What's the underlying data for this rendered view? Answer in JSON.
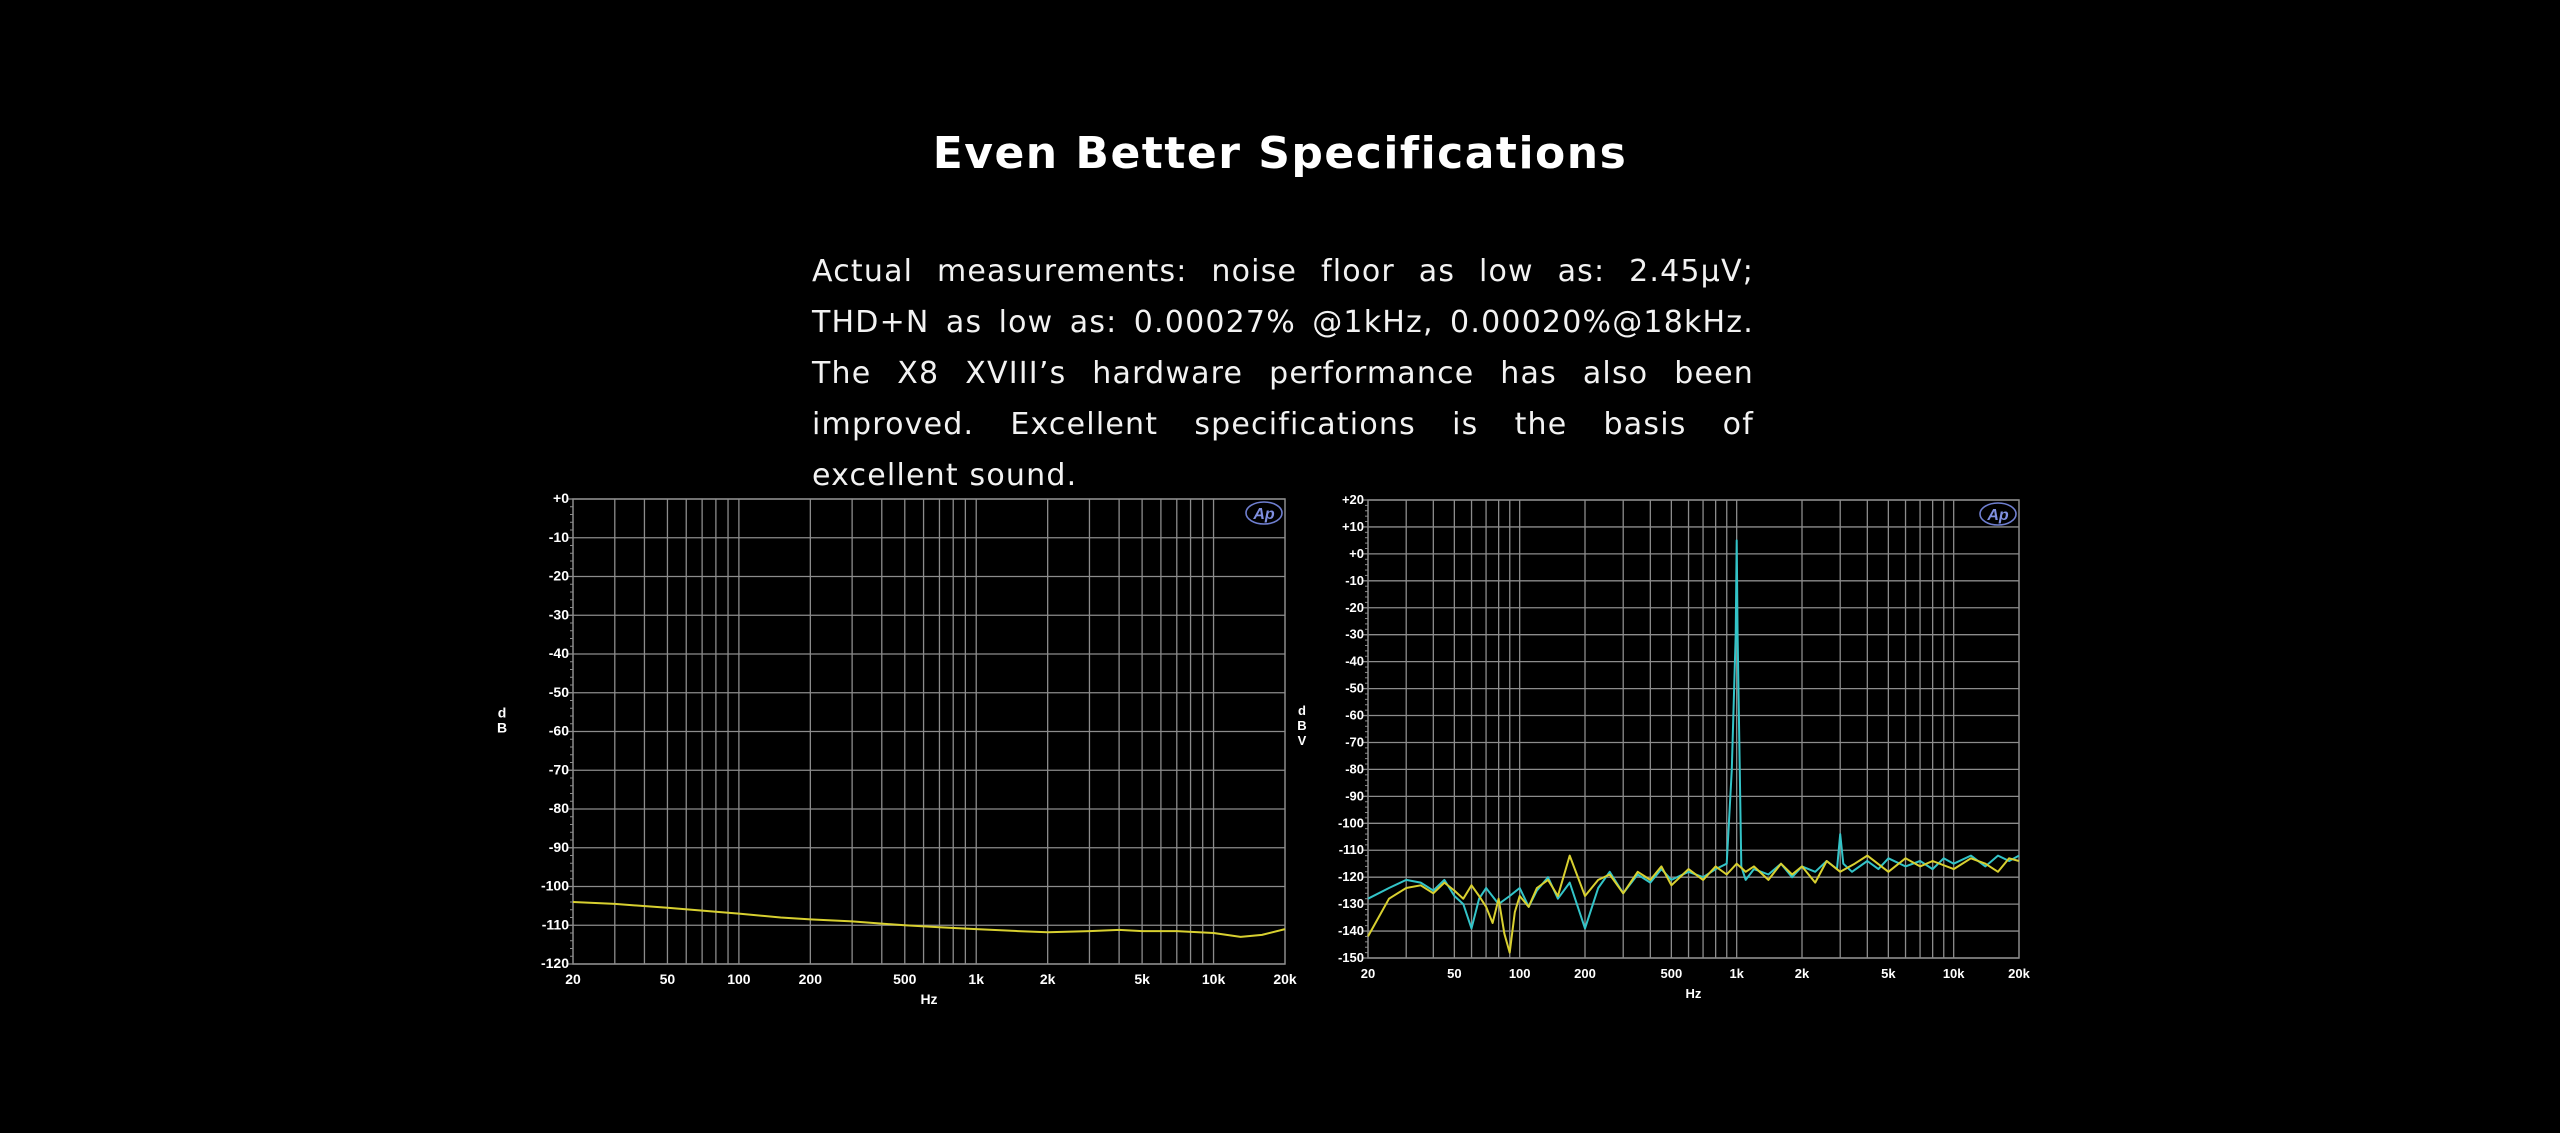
{
  "heading": "Even Better Specifications",
  "description": "Actual measurements: noise floor as low as: 2.45µV; THD+N as low as: 0.00027% @1kHz, 0.00020%@18kHz. The X8 XVIII’s hardware performance has also been improved. Excellent specifications is the basis of excellent sound.",
  "colors": {
    "background": "#000000",
    "grid": "#8c8c8c",
    "trace_yellow": "#d8d030",
    "trace_cyan": "#33c4c8"
  },
  "chart_data": [
    {
      "type": "line",
      "x_scale": "log",
      "xlabel": "Hz",
      "ylabel": "dB",
      "xlim": [
        20,
        20000
      ],
      "ylim": [
        -120,
        0
      ],
      "grid": true,
      "logo": "Ap",
      "x_tick_labels": [
        "20",
        "50",
        "100",
        "200",
        "500",
        "1k",
        "2k",
        "5k",
        "10k",
        "20k"
      ],
      "y_tick_labels": [
        "+0",
        "-10",
        "-20",
        "-30",
        "-40",
        "-50",
        "-60",
        "-70",
        "-80",
        "-90",
        "-100",
        "-110",
        "-120"
      ],
      "series": [
        {
          "color": "#d8d030",
          "x": [
            20,
            30,
            50,
            80,
            100,
            150,
            200,
            300,
            500,
            700,
            1000,
            1500,
            2000,
            3000,
            4000,
            5000,
            7000,
            10000,
            13000,
            16000,
            20000
          ],
          "y": [
            -104,
            -104.5,
            -105.5,
            -106.5,
            -107,
            -108,
            -108.5,
            -109,
            -110,
            -110.5,
            -111,
            -111.5,
            -111.8,
            -111.5,
            -111.2,
            -111.5,
            -111.5,
            -112,
            -113,
            -112.5,
            -111
          ]
        }
      ]
    },
    {
      "type": "line",
      "x_scale": "log",
      "xlabel": "Hz",
      "ylabel": "dBV",
      "xlim": [
        20,
        20000
      ],
      "ylim": [
        -150,
        20
      ],
      "grid": true,
      "logo": "Ap",
      "x_tick_labels": [
        "20",
        "50",
        "100",
        "200",
        "500",
        "1k",
        "2k",
        "5k",
        "10k",
        "20k"
      ],
      "y_tick_labels": [
        "+20",
        "+10",
        "+0",
        "-10",
        "-20",
        "-30",
        "-40",
        "-50",
        "-60",
        "-70",
        "-80",
        "-90",
        "-100",
        "-110",
        "-120",
        "-130",
        "-140",
        "-150"
      ],
      "series": [
        {
          "color": "#33c4c8",
          "x": [
            20,
            25,
            30,
            35,
            40,
            45,
            50,
            55,
            60,
            65,
            70,
            80,
            90,
            100,
            110,
            120,
            135,
            150,
            170,
            200,
            230,
            260,
            300,
            350,
            400,
            450,
            500,
            600,
            700,
            800,
            900,
            950,
            990,
            1000,
            1010,
            1050,
            1100,
            1200,
            1400,
            1600,
            1800,
            2000,
            2300,
            2600,
            2900,
            3000,
            3100,
            3400,
            4000,
            4500,
            5000,
            6000,
            7000,
            8000,
            9000,
            10000,
            12000,
            14000,
            16000,
            18000,
            20000
          ],
          "y": [
            -128,
            -124,
            -121,
            -122,
            -125,
            -121,
            -127,
            -130,
            -139,
            -128,
            -124,
            -130,
            -127,
            -124,
            -131,
            -125,
            -120,
            -128,
            -122,
            -139,
            -124,
            -118,
            -126,
            -119,
            -122,
            -117,
            -121,
            -118,
            -120,
            -117,
            -115,
            -80,
            -30,
            5,
            -30,
            -116,
            -121,
            -117,
            -119,
            -115,
            -120,
            -116,
            -118,
            -114,
            -117,
            -104,
            -115,
            -118,
            -114,
            -117,
            -113,
            -116,
            -114,
            -117,
            -113,
            -115,
            -112,
            -116,
            -112,
            -114,
            -112
          ]
        },
        {
          "color": "#d8d030",
          "x": [
            20,
            22,
            25,
            30,
            35,
            40,
            45,
            50,
            55,
            60,
            65,
            70,
            75,
            80,
            85,
            90,
            95,
            100,
            110,
            120,
            135,
            150,
            170,
            200,
            230,
            260,
            300,
            350,
            400,
            450,
            500,
            600,
            700,
            800,
            900,
            1000,
            1100,
            1200,
            1400,
            1600,
            1800,
            2000,
            2300,
            2600,
            3000,
            3500,
            4000,
            5000,
            6000,
            7000,
            8000,
            10000,
            12000,
            14000,
            16000,
            18000,
            20000
          ],
          "y": [
            -142,
            -136,
            -128,
            -124,
            -123,
            -126,
            -122,
            -125,
            -128,
            -123,
            -127,
            -131,
            -137,
            -128,
            -141,
            -148,
            -133,
            -127,
            -131,
            -124,
            -121,
            -127,
            -112,
            -127,
            -121,
            -119,
            -126,
            -118,
            -121,
            -116,
            -123,
            -117,
            -121,
            -116,
            -119,
            -115,
            -118,
            -116,
            -121,
            -115,
            -119,
            -116,
            -122,
            -114,
            -118,
            -115,
            -112,
            -118,
            -113,
            -116,
            -114,
            -117,
            -113,
            -115,
            -118,
            -113,
            -114
          ]
        }
      ]
    }
  ]
}
